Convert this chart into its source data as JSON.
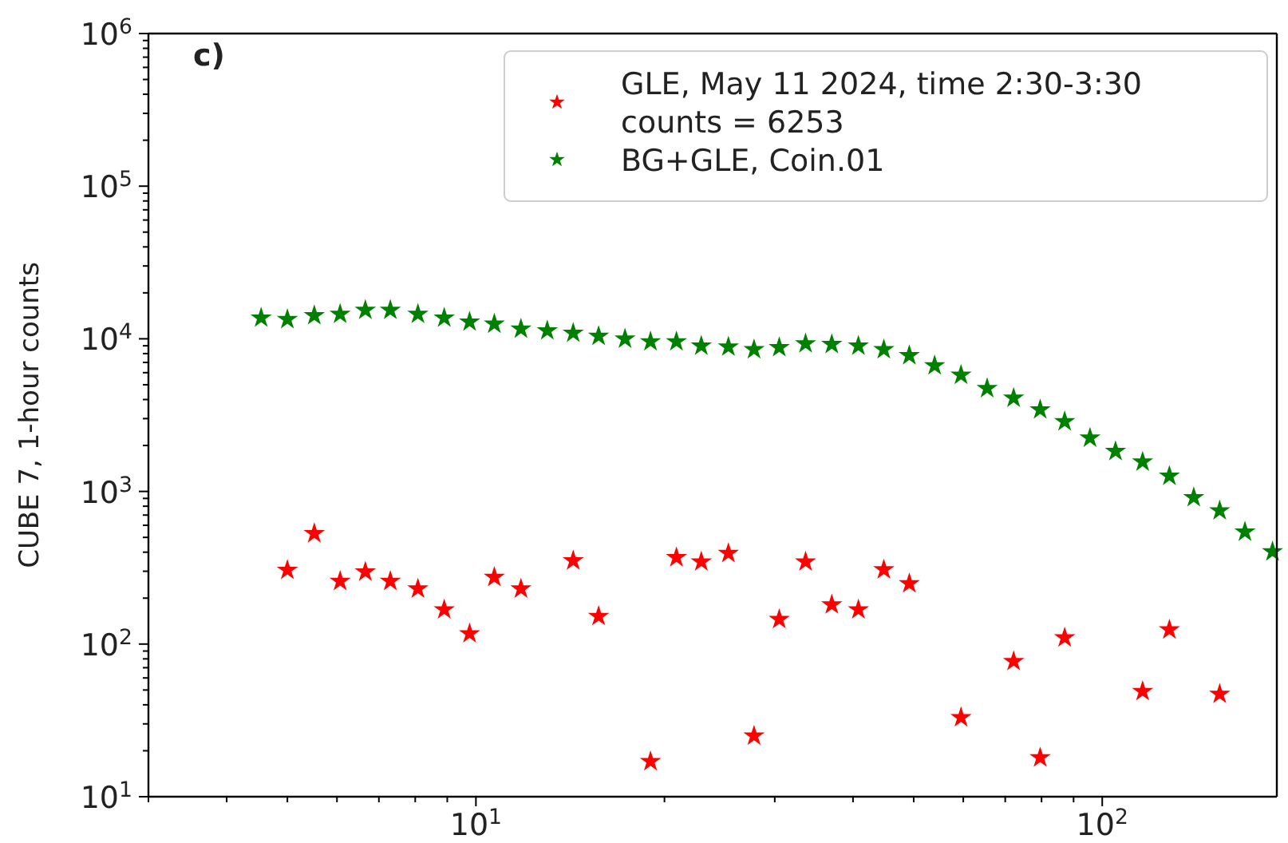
{
  "chart_data": {
    "type": "scatter",
    "ylabel": "CUBE 7, 1-hour counts",
    "annotations": [
      "c)"
    ],
    "log": "xy",
    "marker": "star",
    "legend": "top right",
    "grid": false,
    "xlim": [
      3,
      190
    ],
    "ylim": [
      10,
      1000000
    ],
    "xticks": [
      {
        "value": 3,
        "label": null
      },
      {
        "value": 4,
        "label": null
      },
      {
        "value": 5,
        "label": null
      },
      {
        "value": 6,
        "label": null
      },
      {
        "value": 7,
        "label": null
      },
      {
        "value": 8,
        "label": null
      },
      {
        "value": 9,
        "label": null
      },
      {
        "value": 10,
        "label": "10$^{1}$"
      },
      {
        "value": 20,
        "label": null
      },
      {
        "value": 30,
        "label": null
      },
      {
        "value": 40,
        "label": null
      },
      {
        "value": 50,
        "label": null
      },
      {
        "value": 60,
        "label": null
      },
      {
        "value": 70,
        "label": null
      },
      {
        "value": 80,
        "label": null
      },
      {
        "value": 90,
        "label": null
      },
      {
        "value": 100,
        "label": "10$^{2}$"
      }
    ],
    "yticks": [
      {
        "value": 10,
        "label": "10$^{1}$"
      },
      {
        "value": 20,
        "label": null
      },
      {
        "value": 30,
        "label": null
      },
      {
        "value": 40,
        "label": null
      },
      {
        "value": 50,
        "label": null
      },
      {
        "value": 60,
        "label": null
      },
      {
        "value": 70,
        "label": null
      },
      {
        "value": 80,
        "label": null
      },
      {
        "value": 90,
        "label": null
      },
      {
        "value": 100,
        "label": "10$^{2}$"
      },
      {
        "value": 200,
        "label": null
      },
      {
        "value": 300,
        "label": null
      },
      {
        "value": 400,
        "label": null
      },
      {
        "value": 500,
        "label": null
      },
      {
        "value": 600,
        "label": null
      },
      {
        "value": 700,
        "label": null
      },
      {
        "value": 800,
        "label": null
      },
      {
        "value": 900,
        "label": null
      },
      {
        "value": 1000,
        "label": "10$^{3}$"
      },
      {
        "value": 2000,
        "label": null
      },
      {
        "value": 3000,
        "label": null
      },
      {
        "value": 4000,
        "label": null
      },
      {
        "value": 5000,
        "label": null
      },
      {
        "value": 6000,
        "label": null
      },
      {
        "value": 7000,
        "label": null
      },
      {
        "value": 8000,
        "label": null
      },
      {
        "value": 9000,
        "label": null
      },
      {
        "value": 10000,
        "label": "10$^{4}$"
      },
      {
        "value": 20000,
        "label": null
      },
      {
        "value": 30000,
        "label": null
      },
      {
        "value": 40000,
        "label": null
      },
      {
        "value": 50000,
        "label": null
      },
      {
        "value": 60000,
        "label": null
      },
      {
        "value": 70000,
        "label": null
      },
      {
        "value": 80000,
        "label": null
      },
      {
        "value": 90000,
        "label": null
      },
      {
        "value": 100000,
        "label": "10$^{5}$"
      },
      {
        "value": 200000,
        "label": null
      },
      {
        "value": 300000,
        "label": null
      },
      {
        "value": 400000,
        "label": null
      },
      {
        "value": 500000,
        "label": null
      },
      {
        "value": 600000,
        "label": null
      },
      {
        "value": 700000,
        "label": null
      },
      {
        "value": 800000,
        "label": null
      },
      {
        "value": 900000,
        "label": null
      },
      {
        "value": 1000000,
        "label": "10$^{6}$"
      }
    ],
    "series": [
      {
        "name": "GLE, May 11 2024, time 2:30-3:30\ncounts = 6253",
        "color": "#ff0000",
        "x": [
          5.0,
          5.52,
          6.07,
          6.66,
          7.3,
          8.08,
          8.9,
          9.77,
          10.7,
          11.8,
          14.3,
          15.7,
          19.0,
          20.9,
          22.9,
          25.3,
          27.8,
          30.5,
          33.6,
          37.0,
          40.8,
          44.8,
          49.2,
          59.5,
          72.2,
          79.6,
          87.1,
          116,
          128,
          154
        ],
        "values": [
          305,
          530,
          258,
          297,
          258,
          230,
          168,
          117,
          274,
          230,
          352,
          152,
          17,
          369,
          346,
          393,
          25,
          145,
          346,
          181,
          168,
          307,
          249,
          33,
          77,
          18,
          110,
          49,
          124,
          47
        ]
      },
      {
        "name": "BG+GLE, Coin.01",
        "color": "#008000",
        "x": [
          4.54,
          5.0,
          5.52,
          6.07,
          6.66,
          7.3,
          8.08,
          8.9,
          9.77,
          10.7,
          11.8,
          13.0,
          14.3,
          15.7,
          17.3,
          19.0,
          20.9,
          22.9,
          25.3,
          27.8,
          30.5,
          33.6,
          37.0,
          40.8,
          44.8,
          49.2,
          54.0,
          59.5,
          65.5,
          72.2,
          79.6,
          87.1,
          95.6,
          105,
          116,
          128,
          140,
          154,
          169,
          187
        ],
        "values": [
          13700,
          13400,
          14200,
          14500,
          15400,
          15400,
          14500,
          13700,
          12900,
          12500,
          11600,
          11300,
          10900,
          10400,
          9980,
          9580,
          9580,
          8970,
          8850,
          8500,
          8770,
          9290,
          9190,
          8970,
          8500,
          7770,
          6670,
          5780,
          4730,
          4090,
          3430,
          2870,
          2240,
          1830,
          1560,
          1260,
          912,
          748,
          543,
          403
        ]
      }
    ]
  }
}
